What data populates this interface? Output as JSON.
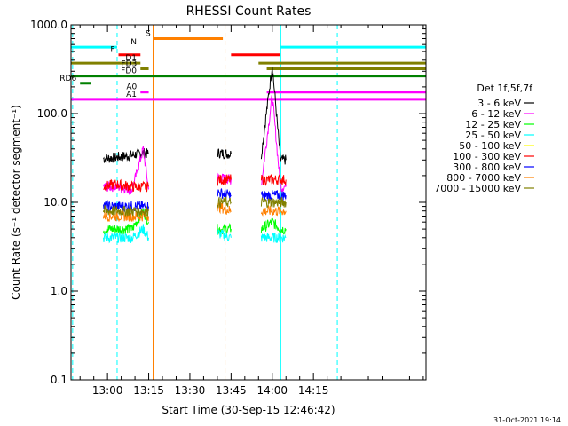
{
  "chart_data": {
    "type": "line",
    "title": "RHESSI Count Rates",
    "xlabel": "Start Time (30-Sep-15 12:46:42)",
    "ylabel": "Count Rate (s⁻¹ detector segment⁻¹)",
    "y_scale": "log",
    "ylim": [
      0.1,
      1000.0
    ],
    "xlim_minutes": [
      766.7,
      896.0
    ],
    "x_tick_labels": [
      "13:00",
      "13:15",
      "13:30",
      "13:45",
      "14:00",
      "14:15"
    ],
    "x_tick_minutes": [
      780,
      795,
      810,
      825,
      840,
      855
    ],
    "y_tick_labels": [
      "0.1",
      "1.0",
      "10.0",
      "100.0",
      "1000.0"
    ],
    "y_tick_values": [
      0.1,
      1,
      10,
      100,
      1000
    ],
    "legend": {
      "placement": "right",
      "title": "Det 1f,5f,7f"
    },
    "series": [
      {
        "name": "3 - 6 keV",
        "color": "#000000",
        "values": [
          [
            778.5,
            31
          ],
          [
            783,
            32
          ],
          [
            789,
            34
          ],
          [
            793,
            36
          ],
          [
            795,
            35
          ],
          [
            820,
            36
          ],
          [
            825,
            35
          ],
          [
            836,
            34
          ],
          [
            840,
            350
          ],
          [
            843,
            30
          ],
          [
            845,
            30
          ]
        ]
      },
      {
        "name": "6 - 12 keV",
        "color": "#ff00ff",
        "values": [
          [
            778.5,
            15
          ],
          [
            783,
            15
          ],
          [
            789,
            14
          ],
          [
            793,
            40
          ],
          [
            795,
            14
          ],
          [
            820,
            19
          ],
          [
            825,
            18
          ],
          [
            836,
            16
          ],
          [
            840,
            160
          ],
          [
            843,
            15
          ],
          [
            845,
            15
          ]
        ]
      },
      {
        "name": "12 - 25 keV",
        "color": "#00ff00",
        "values": [
          [
            778.5,
            5
          ],
          [
            783,
            5
          ],
          [
            789,
            5
          ],
          [
            793,
            8
          ],
          [
            795,
            6
          ],
          [
            820,
            5
          ],
          [
            825,
            5
          ],
          [
            836,
            5
          ],
          [
            840,
            6
          ],
          [
            843,
            5
          ],
          [
            845,
            5
          ]
        ]
      },
      {
        "name": "25 - 50 keV",
        "color": "#00ffff",
        "values": [
          [
            778.5,
            4
          ],
          [
            783,
            4
          ],
          [
            789,
            4
          ],
          [
            793,
            5
          ],
          [
            795,
            4
          ],
          [
            820,
            4.5
          ],
          [
            825,
            4
          ],
          [
            836,
            4
          ],
          [
            840,
            4
          ],
          [
            843,
            4
          ],
          [
            845,
            4
          ]
        ]
      },
      {
        "name": "50 - 100 keV",
        "color": "#ffff00",
        "values": []
      },
      {
        "name": "100 - 300 keV",
        "color": "#ff0000",
        "values": [
          [
            778.5,
            15
          ],
          [
            783,
            16
          ],
          [
            789,
            15
          ],
          [
            793,
            15
          ],
          [
            795,
            15
          ],
          [
            820,
            18
          ],
          [
            825,
            18
          ],
          [
            836,
            18
          ],
          [
            840,
            18
          ],
          [
            843,
            18
          ],
          [
            845,
            18
          ]
        ]
      },
      {
        "name": "300 - 800 keV",
        "color": "#0000ff",
        "values": [
          [
            778.5,
            9
          ],
          [
            783,
            9
          ],
          [
            789,
            9
          ],
          [
            793,
            9
          ],
          [
            795,
            9
          ],
          [
            820,
            13
          ],
          [
            825,
            12
          ],
          [
            836,
            12
          ],
          [
            840,
            12
          ],
          [
            843,
            12
          ],
          [
            845,
            12
          ]
        ]
      },
      {
        "name": "800 - 7000 keV",
        "color": "#ff8000",
        "values": [
          [
            778.5,
            7
          ],
          [
            783,
            7
          ],
          [
            789,
            7
          ],
          [
            793,
            7
          ],
          [
            795,
            7
          ],
          [
            820,
            9
          ],
          [
            825,
            8
          ],
          [
            836,
            8
          ],
          [
            840,
            8
          ],
          [
            843,
            8
          ],
          [
            845,
            8
          ]
        ]
      },
      {
        "name": "7000 - 15000 keV",
        "color": "#808000",
        "values": [
          [
            778.5,
            8
          ],
          [
            783,
            8
          ],
          [
            789,
            8
          ],
          [
            793,
            8
          ],
          [
            795,
            8
          ],
          [
            820,
            10
          ],
          [
            825,
            10
          ],
          [
            836,
            10
          ],
          [
            840,
            10
          ],
          [
            843,
            10
          ],
          [
            845,
            10
          ]
        ]
      }
    ],
    "flag_bars": [
      {
        "label": "N",
        "color": "#00ffff",
        "y": 560,
        "segments": [
          [
            766.7,
            783.5
          ],
          [
            843,
            896
          ]
        ]
      },
      {
        "label": "S",
        "color": "#ff8000",
        "y": 700,
        "segments": [
          [
            797,
            822
          ]
        ]
      },
      {
        "label": "F",
        "color": "#ff0000",
        "y": 460,
        "segments": [
          [
            784,
            792
          ],
          [
            825,
            843
          ]
        ]
      },
      {
        "label": "D1",
        "color": "#808000",
        "y": 370,
        "segments": [
          [
            766.7,
            792
          ],
          [
            835,
            896
          ]
        ]
      },
      {
        "label": "FD3",
        "color": "#808000",
        "y": 320,
        "segments": [
          [
            792,
            795
          ],
          [
            838,
            896
          ]
        ]
      },
      {
        "label": "FD0",
        "color": "#008000",
        "y": 265,
        "segments": [
          [
            766.7,
            896
          ]
        ]
      },
      {
        "label": "RD6",
        "color": "#008000",
        "y": 220,
        "segments": [
          [
            770,
            774
          ]
        ]
      },
      {
        "label": "A0",
        "color": "#ff00ff",
        "y": 175,
        "segments": [
          [
            792,
            795
          ],
          [
            838,
            896
          ]
        ]
      },
      {
        "label": "A1",
        "color": "#ff00ff",
        "y": 145,
        "segments": [
          [
            766.7,
            896
          ]
        ]
      }
    ],
    "vlines": [
      {
        "x": 767.3,
        "color": "#00ffff",
        "style": "dashed"
      },
      {
        "x": 783.5,
        "color": "#00ffff",
        "style": "dashed"
      },
      {
        "x": 796.6,
        "color": "#ff8000",
        "style": "solid"
      },
      {
        "x": 822.8,
        "color": "#ff8000",
        "style": "dashed"
      },
      {
        "x": 843.1,
        "color": "#00ffff",
        "style": "solid"
      },
      {
        "x": 863.7,
        "color": "#00ffff",
        "style": "dashed"
      }
    ],
    "grid": false,
    "footer": "31-Oct-2021 19:14"
  }
}
